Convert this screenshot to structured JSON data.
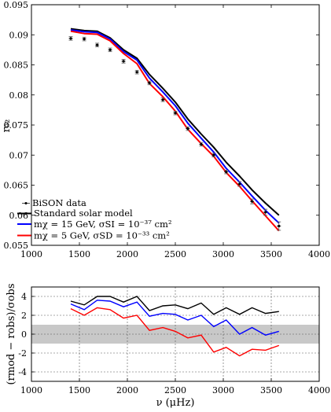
{
  "chart_data": [
    {
      "type": "line",
      "xlim": [
        1000,
        4000
      ],
      "ylim": [
        0.055,
        0.095
      ],
      "x_ticks": [
        "1000",
        "1500",
        "2000",
        "2500",
        "3000",
        "3500",
        "4000"
      ],
      "y_ticks": [
        "0.055",
        "0.06",
        "0.065",
        "0.07",
        "0.075",
        "0.08",
        "0.085",
        "0.09",
        "0.095"
      ],
      "ylabel": "r₀₂",
      "grid": false,
      "legend_position": "bottom-left",
      "legend": [
        {
          "key": "bison",
          "text": "BiSON data",
          "color": "#000000"
        },
        {
          "key": "ssm",
          "text": "Standard solar model",
          "color": "#000000"
        },
        {
          "key": "m15",
          "text": "mχ = 15 GeV, σSI = 10⁻³⁷ cm²",
          "color": "#0000ff"
        },
        {
          "key": "m5",
          "text": "mχ = 5 GeV, σSD = 10⁻³³ cm²",
          "color": "#ff0000"
        }
      ],
      "x": [
        1410,
        1550,
        1685,
        1820,
        1960,
        2100,
        2230,
        2370,
        2500,
        2630,
        2770,
        2900,
        3030,
        3170,
        3300,
        3440,
        3580
      ],
      "points": {
        "name": "BiSON data",
        "y": [
          0.0894,
          0.0893,
          0.0883,
          0.0875,
          0.0856,
          0.0838,
          0.082,
          0.0792,
          0.077,
          0.0744,
          0.0718,
          0.07,
          0.0672,
          0.0652,
          0.0623,
          0.0605,
          0.0582
        ],
        "err": [
          0.0003,
          0.0003,
          0.0003,
          0.0003,
          0.0003,
          0.0003,
          0.0003,
          0.0003,
          0.0003,
          0.0003,
          0.0003,
          0.0003,
          0.0003,
          0.0004,
          0.0004,
          0.0005,
          0.0007
        ]
      },
      "series": [
        {
          "name": "Standard solar model",
          "color": "#000000",
          "y": [
            0.091,
            0.0907,
            0.0906,
            0.0895,
            0.0875,
            0.0861,
            0.0834,
            0.0811,
            0.0788,
            0.076,
            0.0735,
            0.0713,
            0.0688,
            0.0665,
            0.0642,
            0.062,
            0.06
          ]
        },
        {
          "name": "mχ = 15 GeV, σSI = 10⁻³⁷ cm²",
          "color": "#0000ff",
          "y": [
            0.0908,
            0.0905,
            0.0904,
            0.0893,
            0.0872,
            0.0858,
            0.0828,
            0.0805,
            0.0782,
            0.0753,
            0.0728,
            0.0705,
            0.0678,
            0.0655,
            0.0632,
            0.0608,
            0.0587
          ]
        },
        {
          "name": "mχ = 5 GeV, σSD = 10⁻³³ cm²",
          "color": "#ff0000",
          "y": [
            0.0906,
            0.0902,
            0.0901,
            0.089,
            0.0869,
            0.0852,
            0.0819,
            0.0797,
            0.0773,
            0.0743,
            0.0719,
            0.0698,
            0.0671,
            0.0648,
            0.0624,
            0.0599,
            0.0574
          ]
        }
      ]
    },
    {
      "type": "line",
      "xlim": [
        1000,
        4000
      ],
      "ylim": [
        -5,
        5
      ],
      "x_ticks": [
        "1000",
        "1500",
        "2000",
        "2500",
        "3000",
        "3500",
        "4000"
      ],
      "y_ticks": [
        "4",
        "2",
        "0",
        "-2",
        "-4"
      ],
      "xlabel": "ν (μHz)",
      "ylabel": "(rmod − robs)/σobs",
      "grid": true,
      "shaded_band": [
        -1,
        1
      ],
      "x": [
        1410,
        1550,
        1685,
        1820,
        1960,
        2100,
        2230,
        2370,
        2500,
        2630,
        2770,
        2900,
        3030,
        3170,
        3300,
        3440,
        3580
      ],
      "series": [
        {
          "name": "Standard solar model",
          "color": "#000000",
          "y": [
            3.5,
            3.1,
            4.0,
            4.0,
            3.4,
            4.0,
            2.5,
            3.0,
            3.1,
            2.7,
            3.3,
            2.1,
            2.8,
            2.1,
            2.8,
            2.2,
            2.4
          ]
        },
        {
          "name": "mχ = 15 GeV, σSI = 10⁻³⁷ cm²",
          "color": "#0000ff",
          "y": [
            3.2,
            2.6,
            3.6,
            3.5,
            2.9,
            3.4,
            1.9,
            2.2,
            2.1,
            1.5,
            2.0,
            0.8,
            1.5,
            0.0,
            0.7,
            -0.1,
            0.3
          ]
        },
        {
          "name": "mχ = 5 GeV, σSD = 10⁻³³ cm²",
          "color": "#ff0000",
          "y": [
            2.7,
            2.0,
            2.8,
            2.6,
            1.7,
            2.0,
            0.4,
            0.7,
            0.3,
            -0.4,
            -0.1,
            -1.9,
            -1.4,
            -2.3,
            -1.6,
            -1.7,
            -1.2
          ]
        }
      ]
    }
  ]
}
